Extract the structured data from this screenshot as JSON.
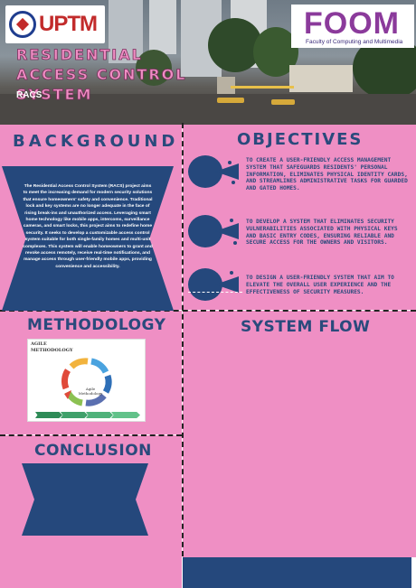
{
  "header": {
    "uptm_logo": "UPTM",
    "foom_logo": "FOOM",
    "foom_subtitle": "Faculty of Computing and Multimedia",
    "title": "RESIDENTIAL ACCESS CONTROL SYSTEM",
    "subtitle": "RACS"
  },
  "background": {
    "heading": "BACKGROUND",
    "text": "The Residential Access Control System (RACS) project aims to meet the increasing demand for modern security solutions that ensure homeowners' safety and convenience. Traditional lock and key systems are no longer adequate in the face of rising break-ins and unauthorized access. Leveraging smart home technology like mobile apps, intercoms, surveillance cameras, and smart locks, this project aims to redefine home security. It seeks to develop a customizable access control system suitable for both single-family homes and multi-unit complexes. This system will enable homeowners to grant and revoke access remotely, receive real-time notifications, and manage access through user-friendly mobile apps, providing convenience and accessibility."
  },
  "objectives": {
    "heading": "OBJECTIVES",
    "items": [
      {
        "text": "TO CREATE A USER-FRIENDLY ACCESS MANAGEMENT SYSTEM THAT SAFEGUARDS RESIDENTS' PERSONAL INFORMATION, ELIMINATES PHYSICAL IDENTITY CARDS, AND STREAMLINES ADMINISTRATIVE TASKS FOR GUARDED AND GATED HOMES."
      },
      {
        "text": "TO DEVELOP A SYSTEM THAT ELIMINATES SECURITY VULNERABILITIES ASSOCIATED WITH PHYSICAL KEYS AND BASIC ENTRY CODES, ENSURING RELIABLE AND SECURE ACCESS FOR THE OWNERS AND VISITORS."
      },
      {
        "text": "TO DESIGN A USER-FRIENDLY SYSTEM THAT AIM TO ELEVATE THE OVERALL USER EXPERIENCE AND THE EFFECTIVENESS OF SECURITY MEASURES."
      }
    ],
    "icon": "fish-bullet-icon"
  },
  "methodology": {
    "heading": "METHODOLOGY",
    "diagram_title": "AGILE METHODOLOGY",
    "diagram_center": "Agile Methodology"
  },
  "system_flow": {
    "heading": "SYSTEM FLOW"
  },
  "conclusion": {
    "heading": "CONCLUSION"
  },
  "colors": {
    "pink": "#ef8fc4",
    "navy": "#25487c",
    "heading": "#2a4a7c"
  }
}
